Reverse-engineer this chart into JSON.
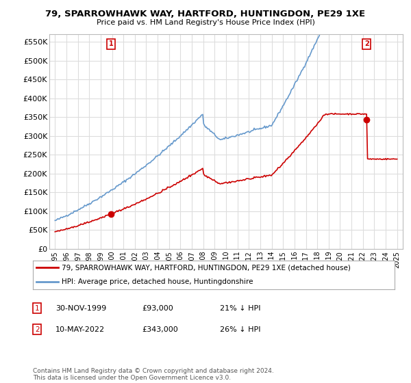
{
  "title": "79, SPARROWHAWK WAY, HARTFORD, HUNTINGDON, PE29 1XE",
  "subtitle": "Price paid vs. HM Land Registry's House Price Index (HPI)",
  "red_label": "79, SPARROWHAWK WAY, HARTFORD, HUNTINGDON, PE29 1XE (detached house)",
  "blue_label": "HPI: Average price, detached house, Huntingdonshire",
  "point1_date": "30-NOV-1999",
  "point1_price": 93000,
  "point1_pct": "21% ↓ HPI",
  "point2_date": "10-MAY-2022",
  "point2_price": 343000,
  "point2_pct": "26% ↓ HPI",
  "footer": "Contains HM Land Registry data © Crown copyright and database right 2024.\nThis data is licensed under the Open Government Licence v3.0.",
  "ylim": [
    0,
    570000
  ],
  "yticks": [
    0,
    50000,
    100000,
    150000,
    200000,
    250000,
    300000,
    350000,
    400000,
    450000,
    500000,
    550000
  ],
  "ytick_labels": [
    "£0",
    "£50K",
    "£100K",
    "£150K",
    "£200K",
    "£250K",
    "£300K",
    "£350K",
    "£400K",
    "£450K",
    "£500K",
    "£550K"
  ],
  "background_color": "#ffffff",
  "grid_color": "#dddddd",
  "red_color": "#cc0000",
  "blue_color": "#6699cc"
}
